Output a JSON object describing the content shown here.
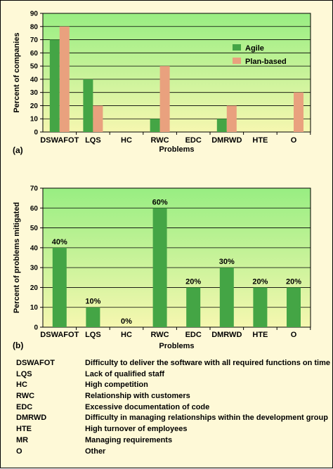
{
  "colors": {
    "page_bg": "#fef9d7",
    "plot_top": "#98ee82",
    "plot_bottom": "#f6f7b0",
    "agile": "#44a545",
    "plan_based": "#e9a17e"
  },
  "chart_data": [
    {
      "type": "bar",
      "panel_label": "(a)",
      "categories": [
        "DSWAFOT",
        "LQS",
        "HC",
        "RWC",
        "EDC",
        "DMRWD",
        "HTE",
        "O"
      ],
      "series": [
        {
          "name": "Agile",
          "values": [
            70,
            40,
            0,
            10,
            0,
            10,
            0,
            0
          ],
          "color": "#44a545"
        },
        {
          "name": "Plan-based",
          "values": [
            80,
            20,
            0,
            50,
            0,
            20,
            0,
            30
          ],
          "color": "#e9a17e"
        }
      ],
      "xlabel": "Problems",
      "ylabel": "Percent of companies",
      "ylim": [
        0,
        90
      ],
      "yticks": [
        0,
        10,
        20,
        30,
        40,
        50,
        60,
        70,
        80,
        90
      ],
      "grid": true,
      "legend_position": "top-right"
    },
    {
      "type": "bar",
      "panel_label": "(b)",
      "categories": [
        "DSWAFOT",
        "LQS",
        "HC",
        "RWC",
        "EDC",
        "DMRWD",
        "HTE",
        "O"
      ],
      "values": [
        40,
        10,
        0,
        60,
        20,
        30,
        20,
        20
      ],
      "data_labels": [
        "40%",
        "10%",
        "0%",
        "60%",
        "20%",
        "30%",
        "20%",
        "20%"
      ],
      "color": "#44a545",
      "xlabel": "Problems",
      "ylabel": "Percent of problems mitigated",
      "ylim": [
        0,
        70
      ],
      "yticks": [
        0,
        10,
        20,
        30,
        40,
        50,
        60,
        70
      ],
      "grid": true
    }
  ],
  "glossary": [
    {
      "abbr": "DSWAFOT",
      "definition": "Difficulty to deliver the software with all required functions on time"
    },
    {
      "abbr": "LQS",
      "definition": "Lack of qualified staff"
    },
    {
      "abbr": "HC",
      "definition": "High competition"
    },
    {
      "abbr": "RWC",
      "definition": "Relationship with customers"
    },
    {
      "abbr": "EDC",
      "definition": "Excessive documentation of code"
    },
    {
      "abbr": "DMRWD",
      "definition": "Difficulty in managing relationships within the development group"
    },
    {
      "abbr": "HTE",
      "definition": "High turnover of employees"
    },
    {
      "abbr": "MR",
      "definition": "Managing requirements"
    },
    {
      "abbr": "O",
      "definition": "Other"
    }
  ]
}
